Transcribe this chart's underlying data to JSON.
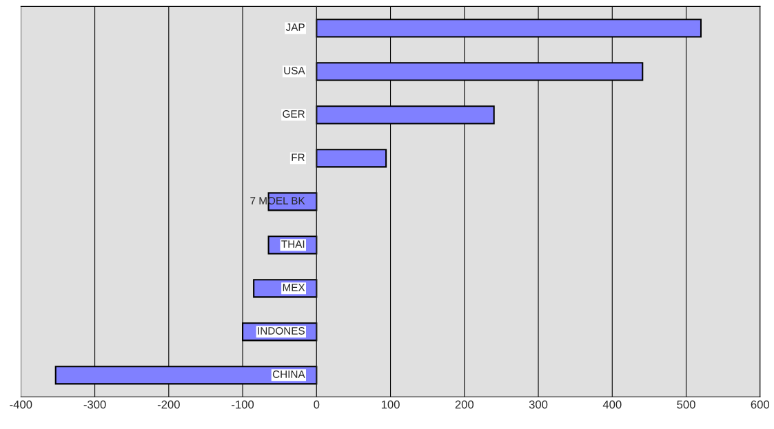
{
  "chart_data": {
    "type": "bar",
    "orientation": "horizontal",
    "categories": [
      "JAP",
      "USA",
      "GER",
      "FR",
      "7 MOEL BK",
      "THAI",
      "MEX",
      "INDONES",
      "CHINA"
    ],
    "values": [
      520,
      441,
      240,
      94,
      -65,
      -65,
      -85,
      -100,
      -353
    ],
    "color": "#8080ff",
    "xlim": [
      -400,
      600
    ],
    "xticks": [
      -400,
      -300,
      -200,
      -100,
      0,
      100,
      200,
      300,
      400,
      500,
      600
    ],
    "grid": "x"
  }
}
